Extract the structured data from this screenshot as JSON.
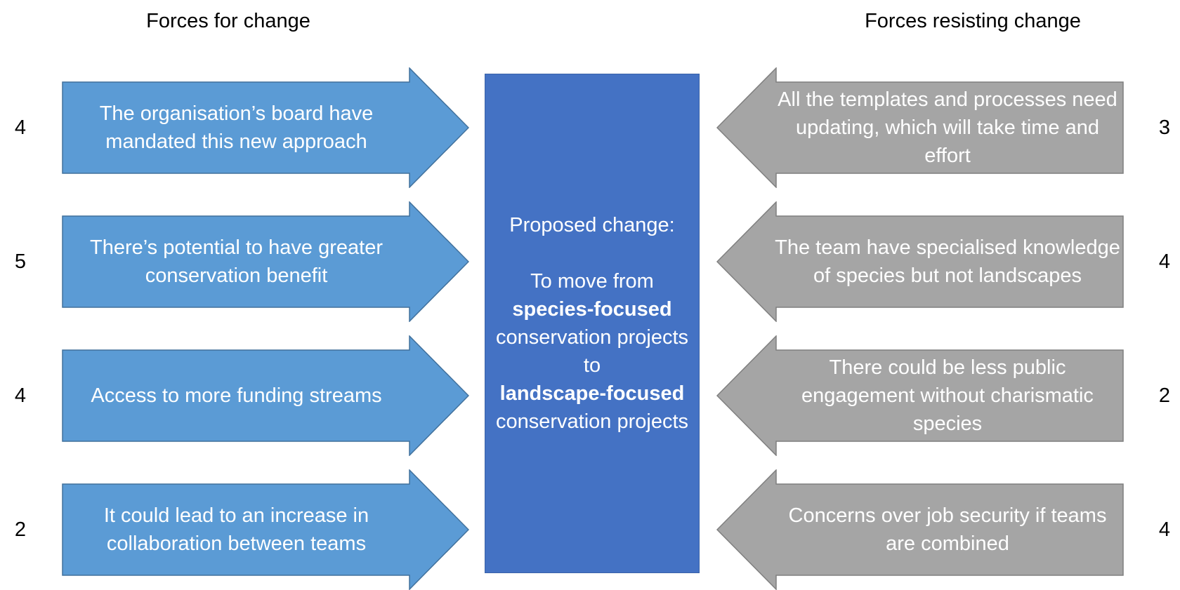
{
  "headers": {
    "left": "Forces for change",
    "right": "Forces resisting change"
  },
  "colors": {
    "for_arrow": "#5b9bd5",
    "for_arrow_border": "#41719c",
    "against_arrow": "#a5a5a5",
    "against_arrow_border": "#7f7f7f",
    "center_box": "#4472c4"
  },
  "forces_for": [
    {
      "text": "The organisation’s board have mandated this new approach",
      "score": "4"
    },
    {
      "text": "There’s potential to have greater conservation benefit",
      "score": "5"
    },
    {
      "text": "Access to more funding streams",
      "score": "4"
    },
    {
      "text": "It could lead to an increase in collaboration between teams",
      "score": "2"
    }
  ],
  "forces_against": [
    {
      "text": "All the templates and processes need updating, which will take time and effort",
      "score": "3"
    },
    {
      "text": "The team have specialised knowledge of species but not landscapes",
      "score": "4"
    },
    {
      "text": "There could be less public engagement without charismatic species",
      "score": "2"
    },
    {
      "text": "Concerns over job security if teams are combined",
      "score": "4"
    }
  ],
  "center": {
    "heading": "Proposed change:",
    "line_1": "To move from",
    "from_focus": "species-focused",
    "line_2": "conservation projects to",
    "to_focus": "landscape-focused",
    "line_3": "conservation projects"
  }
}
